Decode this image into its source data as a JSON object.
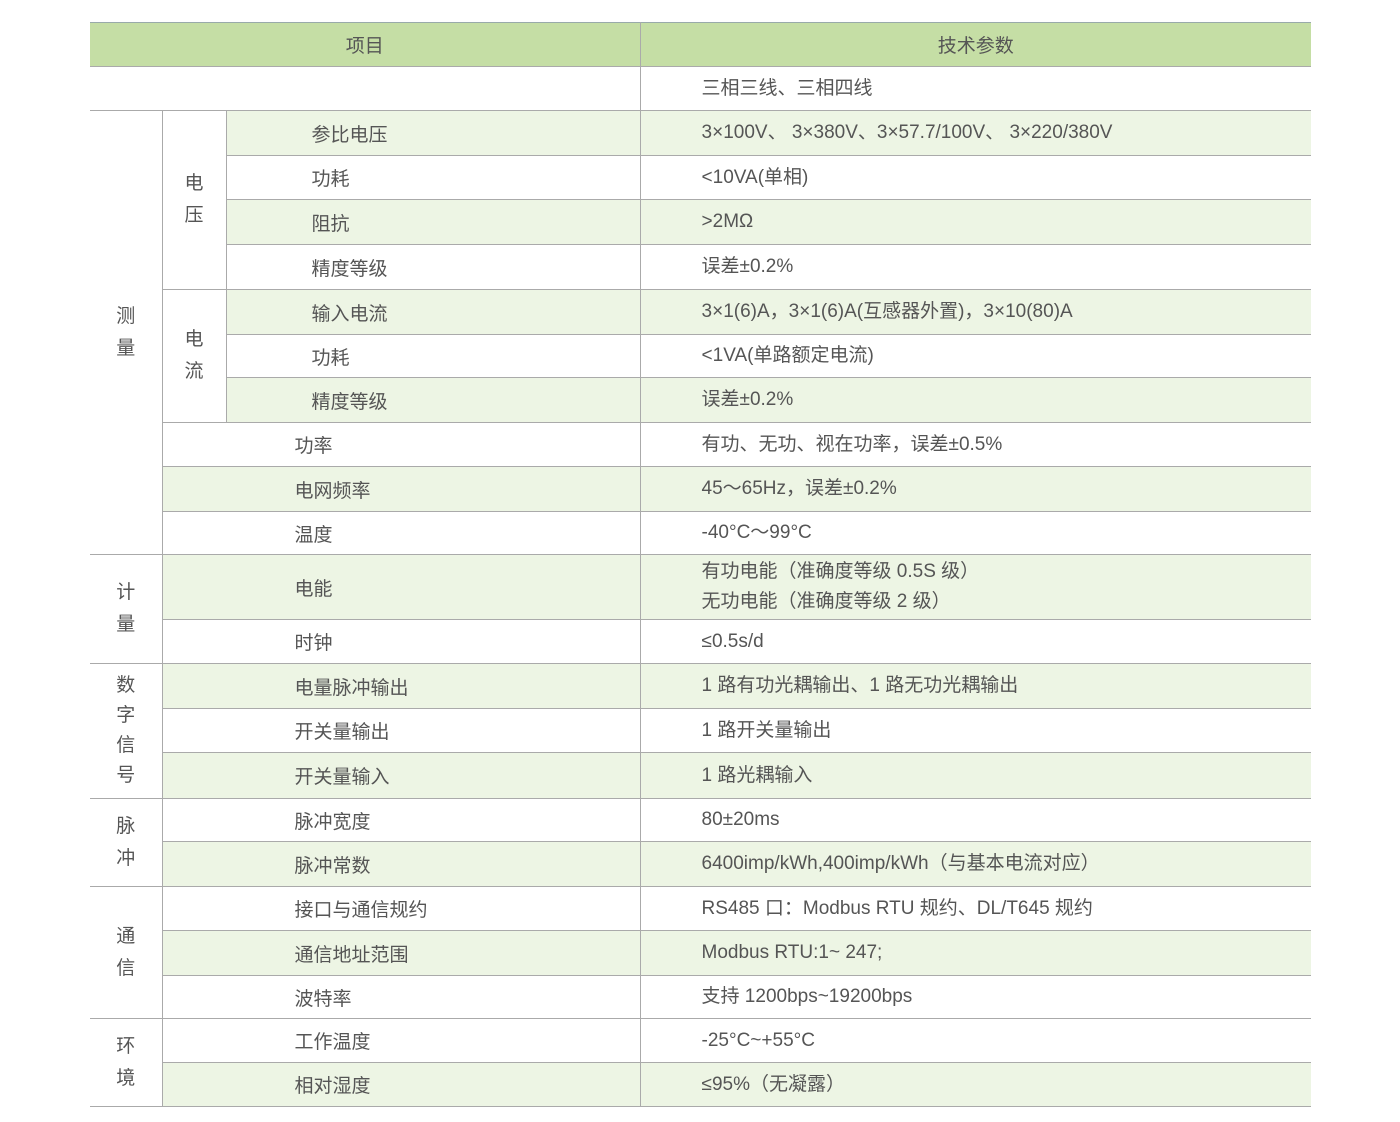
{
  "header": {
    "item": "项目",
    "spec": "技术参数"
  },
  "wiring": "三相三线、三相四线",
  "groups": {
    "measure": "测量",
    "metering": "计量",
    "digital": "数字信号",
    "pulse": "脉冲",
    "comm": "通信",
    "env": "环境"
  },
  "subgroups": {
    "voltage": "电压",
    "current": "电流"
  },
  "rows": [
    {
      "item": "参比电压",
      "value": "3×100V、 3×380V、3×57.7/100V、 3×220/380V"
    },
    {
      "item": "功耗",
      "value": "<10VA(单相)"
    },
    {
      "item": "阻抗",
      "value": ">2MΩ"
    },
    {
      "item": "精度等级",
      "value": "误差±0.2%"
    },
    {
      "item": "输入电流",
      "value": "3×1(6)A，3×1(6)A(互感器外置)，3×10(80)A"
    },
    {
      "item": "功耗",
      "value": "<1VA(单路额定电流)"
    },
    {
      "item": "精度等级",
      "value": "误差±0.2%"
    },
    {
      "item": "功率",
      "value": "有功、无功、视在功率，误差±0.5%"
    },
    {
      "item": "电网频率",
      "value": "45～65Hz，误差±0.2%"
    },
    {
      "item": "温度",
      "value": "-40°C～99°C"
    },
    {
      "item": "电能",
      "value": "有功电能（准确度等级 0.5S 级）",
      "value2": "无功电能（准确度等级 2 级）"
    },
    {
      "item": "时钟",
      "value": "≤0.5s/d"
    },
    {
      "item": "电量脉冲输出",
      "value": "1 路有功光耦输出、1 路无功光耦输出"
    },
    {
      "item": "开关量输出",
      "value": "1 路开关量输出"
    },
    {
      "item": "开关量输入",
      "value": "1 路光耦输入"
    },
    {
      "item": "脉冲宽度",
      "value": "80±20ms"
    },
    {
      "item": "脉冲常数",
      "value": "6400imp/kWh,400imp/kWh（与基本电流对应）"
    },
    {
      "item": "接口与通信规约",
      "value": "RS485 口：Modbus RTU 规约、DL/T645 规约"
    },
    {
      "item": "通信地址范围",
      "value": "Modbus RTU:1~ 247;"
    },
    {
      "item": "波特率",
      "value": "支持 1200bps~19200bps"
    },
    {
      "item": "工作温度",
      "value": "-25°C~+55°C"
    },
    {
      "item": "相对湿度",
      "value": "≤95%（无凝露）"
    }
  ],
  "colors": {
    "header": "#c5dea5",
    "stripe": "#edf5e4",
    "border": "#aaaaaa",
    "text": "#555555"
  }
}
